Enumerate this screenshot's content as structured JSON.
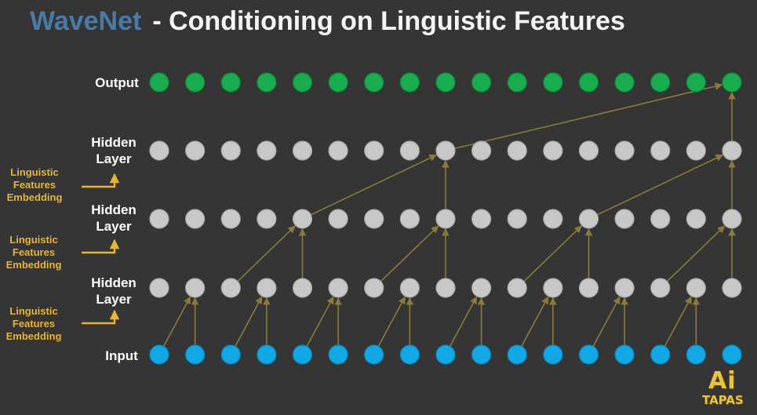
{
  "title": {
    "accent": "WaveNet",
    "main": "- Conditioning on Linguistic Features"
  },
  "rows": [
    {
      "key": "output",
      "label": "Output",
      "color": "#1aad4f",
      "stroke": "#0d8a3a"
    },
    {
      "key": "hidden3",
      "label": "Hidden\nLayer",
      "color": "#c8c8c8",
      "stroke": "#a8a8a8"
    },
    {
      "key": "hidden2",
      "label": "Hidden\nLayer",
      "color": "#c8c8c8",
      "stroke": "#a8a8a8"
    },
    {
      "key": "hidden1",
      "label": "Hidden\nLayer",
      "color": "#c8c8c8",
      "stroke": "#a8a8a8"
    },
    {
      "key": "input",
      "label": "Input",
      "color": "#12a8e6",
      "stroke": "#0b86bb"
    }
  ],
  "linguistic": [
    {
      "label": "Linguistic\nFeatures\nEmbedding"
    },
    {
      "label": "Linguistic\nFeatures\nEmbedding"
    },
    {
      "label": "Linguistic\nFeatures\nEmbedding"
    }
  ],
  "node_count": 17,
  "connection_color": "#8b7a3a",
  "embedding_arrow_color": "#e7b533",
  "logo": {
    "top": "Ai",
    "bottom": "TAPAS"
  }
}
